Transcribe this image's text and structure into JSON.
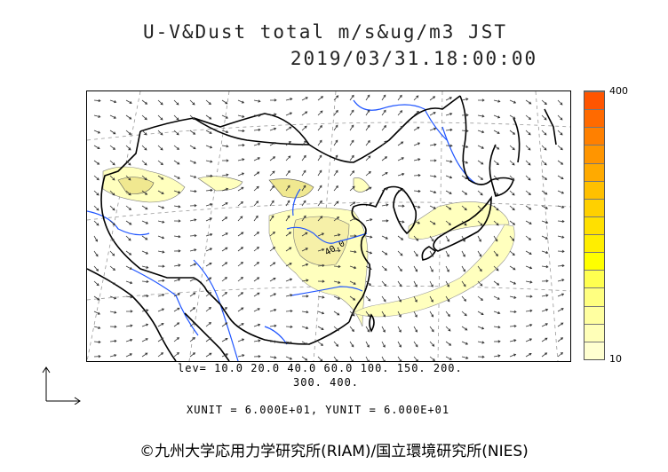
{
  "title": {
    "line1": "U-V&Dust total m/s&ug/m3 JST",
    "line2": "2019/03/31.18:00:00"
  },
  "legend": {
    "levels_line1": "lev= 10.0 20.0 40.0 60.0 100. 150. 200.",
    "levels_line2": "300. 400.",
    "units": "XUNIT = 6.000E+01, YUNIT = 6.000E+01"
  },
  "colorbar": {
    "max_label": "400",
    "min_label": "10",
    "colors": [
      "#ffffd0",
      "#ffffb8",
      "#ffffa0",
      "#ffff80",
      "#ffff50",
      "#ffff00",
      "#ffee00",
      "#ffe000",
      "#ffd000",
      "#ffc000",
      "#ffaa00",
      "#ff9500",
      "#ff8000",
      "#ff6a00",
      "#ff5500"
    ]
  },
  "map_contour_label": "40.0",
  "copyright": "©九州大学応用力学研究所(RIAM)/国立環境研究所(NIES)",
  "map_colors": {
    "land_border": "#000000",
    "river": "#1f55ff",
    "dust_fill": "#ffffbe",
    "dust_core": "#f3ed9c",
    "grid": "#888888",
    "vector": "#333333"
  }
}
